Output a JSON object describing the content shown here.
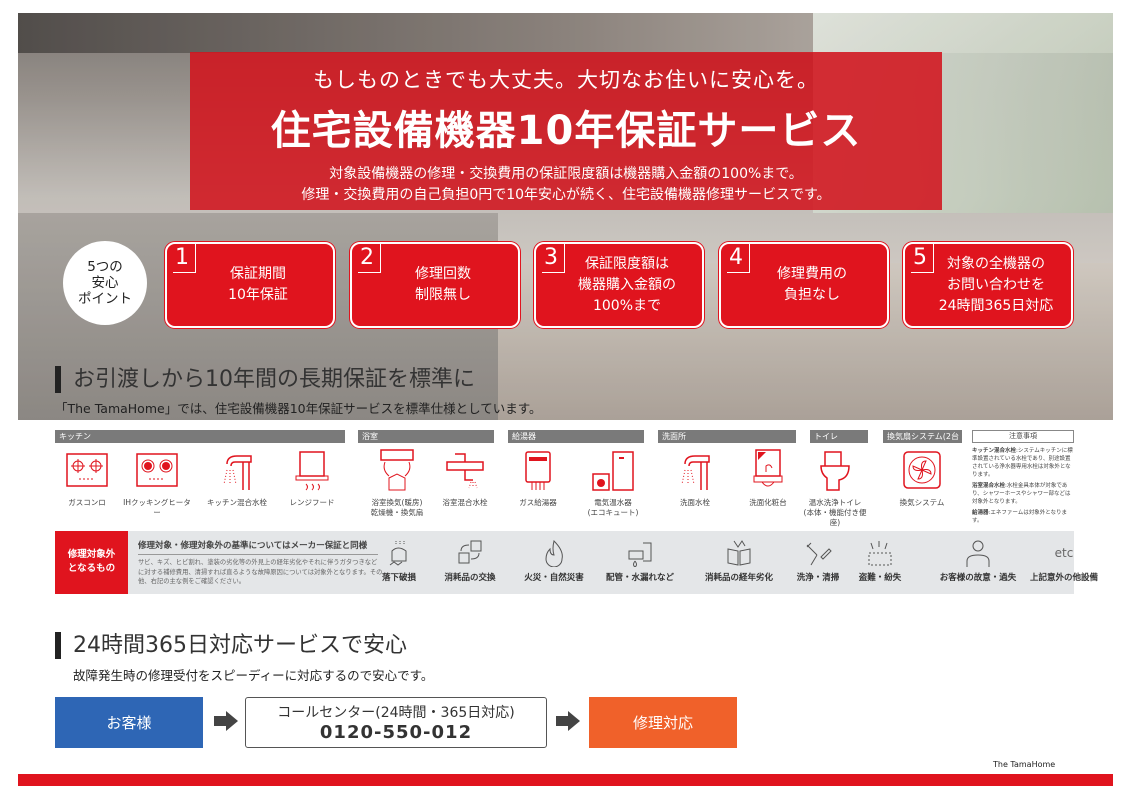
{
  "hero": {
    "tagline": "もしものときでも大丈夫。大切なお住いに安心を。",
    "title": "住宅設備機器10年保証サービス",
    "desc1": "対象設備機器の修理・交換費用の保証限度額は機器購入金額の100%まで。",
    "desc2": "修理・交換費用の自己負担0円で10年安心が続く、住宅設備機器修理サービスです。"
  },
  "points": {
    "badge": "5つの\n安心\nポイント",
    "items": [
      {
        "num": "1",
        "text": "保証期間\n10年保証"
      },
      {
        "num": "2",
        "text": "修理回数\n制限無し"
      },
      {
        "num": "3",
        "text": "保証限度額は\n機器購入金額の\n100%まで"
      },
      {
        "num": "4",
        "text": "修理費用の\n負担なし"
      },
      {
        "num": "5",
        "text": "対象の全機器の\nお問い合わせを\n24時間365日対応"
      }
    ]
  },
  "section1": {
    "title": "お引渡しから10年間の長期保証を標準に",
    "subtitle": "「The TamaHome」では、住宅設備機器10年保証サービスを標準仕様としています。"
  },
  "categories": [
    {
      "label": "キッチン"
    },
    {
      "label": "浴室"
    },
    {
      "label": "給湯器"
    },
    {
      "label": "洗面所"
    },
    {
      "label": "トイレ"
    },
    {
      "label": "換気扇システム(2台まで)"
    }
  ],
  "devices": [
    {
      "label": "ガスコンロ",
      "icon": "gas-stove-icon"
    },
    {
      "label": "IHクッキングヒーター",
      "icon": "ih-cooktop-icon"
    },
    {
      "label": "キッチン混合水栓",
      "icon": "kitchen-faucet-icon"
    },
    {
      "label": "レンジフード",
      "icon": "range-hood-icon"
    },
    {
      "label": "浴室換気(暖房)\n乾燥機・換気扇",
      "icon": "bath-dryer-icon"
    },
    {
      "label": "浴室混合水栓",
      "icon": "bath-faucet-icon"
    },
    {
      "label": "ガス給湯器",
      "icon": "gas-water-heater-icon"
    },
    {
      "label": "電気温水器\n(エコキュート)",
      "icon": "eco-cute-icon"
    },
    {
      "label": "洗面水栓",
      "icon": "washbasin-faucet-icon"
    },
    {
      "label": "洗面化粧台",
      "icon": "vanity-icon"
    },
    {
      "label": "温水洗浄トイレ\n(本体・機能付き便座)",
      "icon": "toilet-icon"
    },
    {
      "label": "換気システム",
      "icon": "ventilation-fan-icon"
    }
  ],
  "notes": {
    "title": "注意事項",
    "items": [
      {
        "term": "キッチン混合水栓",
        "text": ":システムキッチンに標準設置されている水栓であり、別途設置されている浄水器専用水栓は対象外となります。"
      },
      {
        "term": "浴室混合水栓",
        "text": ":水栓金具本体が対象であり、シャワーホースやシャワー部などは対象外となります。"
      },
      {
        "term": "給湯器",
        "text": ":エネファームは対象外となります。"
      }
    ]
  },
  "exclusions": {
    "label": "修理対象外\nとなるもの",
    "heading": "修理対象・修理対象外の基準についてはメーカー保証と同様",
    "body": "サビ、キズ、ヒビ割れ、塗装の劣化等の外見上の経年劣化やそれに伴うガタつきなどに対する補修費用、清掃すれば直るような故障原因については対象外となります。その他、右記の主な例をご確認ください。",
    "items": [
      {
        "label": "落下破損",
        "icon": "drop-damage-icon"
      },
      {
        "label": "消耗品の交換",
        "icon": "replace-icon"
      },
      {
        "label": "火災・自然災害",
        "icon": "fire-icon"
      },
      {
        "label": "配管・水漏れなど",
        "icon": "pipe-leak-icon"
      },
      {
        "label": "消耗品の経年劣化",
        "icon": "wear-icon"
      },
      {
        "label": "洗浄・清掃",
        "icon": "cleaning-tools-icon"
      },
      {
        "label": "盗難・紛失",
        "icon": "missing-icon"
      },
      {
        "label": "お客様の故意・過失",
        "icon": "person-icon"
      },
      {
        "label": "上記意外の他設備",
        "icon": "etc"
      }
    ]
  },
  "section2": {
    "title": "24時間365日対応サービスで安心",
    "subtitle": "故障発生時の修理受付をスピーディーに対応するので安心です。"
  },
  "flow": {
    "customer": "お客様",
    "center_label": "コールセンター(24時間・365日対応)",
    "phone": "0120-550-012",
    "repair": "修理対応"
  },
  "footer": {
    "logo": "The TamaHome"
  },
  "colors": {
    "red": "#e0141e",
    "blue": "#2e66b5",
    "orange": "#f0612a"
  }
}
